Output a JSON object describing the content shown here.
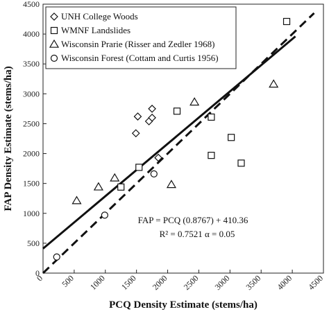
{
  "chart_data": {
    "type": "scatter",
    "xlabel": "PCQ Density Estimate (stems/ha)",
    "ylabel": "FAP Density Estimate (stems/ha)",
    "xlim": [
      0,
      4500
    ],
    "ylim": [
      0,
      4500
    ],
    "x_ticks": [
      0,
      500,
      1000,
      1500,
      2000,
      2500,
      3000,
      3500,
      4000,
      4500
    ],
    "y_ticks": [
      0,
      500,
      1000,
      1500,
      2000,
      2500,
      3000,
      3500,
      4000,
      4500
    ],
    "x_tick_labels": [
      "0",
      "500",
      "1000",
      "1500",
      "2000",
      "2500",
      "3000",
      "3500",
      "4000",
      "4500"
    ],
    "y_tick_labels": [
      "0",
      "500",
      "1000",
      "1500",
      "2000",
      "2500",
      "3000",
      "3500",
      "4000",
      "4500"
    ],
    "grid": false,
    "legend_position": "top-left",
    "series": [
      {
        "name": "UNH College Woods",
        "marker": "diamond",
        "points": [
          [
            1490,
            2340
          ],
          [
            1520,
            2620
          ],
          [
            1700,
            2540
          ],
          [
            1750,
            2600
          ],
          [
            1750,
            2750
          ],
          [
            1850,
            1930
          ]
        ]
      },
      {
        "name": "WMNF Landslides",
        "marker": "square",
        "points": [
          [
            1540,
            1770
          ],
          [
            1250,
            1440
          ],
          [
            2150,
            2710
          ],
          [
            2700,
            2610
          ],
          [
            2700,
            1970
          ],
          [
            3020,
            2270
          ],
          [
            3180,
            1840
          ],
          [
            3910,
            4210
          ]
        ]
      },
      {
        "name": "Wisconsin Prarie (Risser and Zedler 1968)",
        "marker": "triangle",
        "points": [
          [
            540,
            1210
          ],
          [
            890,
            1440
          ],
          [
            1150,
            1590
          ],
          [
            2060,
            1480
          ],
          [
            2430,
            2860
          ],
          [
            3700,
            3160
          ]
        ]
      },
      {
        "name": "Wisconsin Forest (Cottam and Curtis 1956)",
        "marker": "circle",
        "points": [
          [
            220,
            270
          ],
          [
            990,
            970
          ],
          [
            1780,
            1660
          ]
        ]
      }
    ],
    "fit_line": {
      "label": "FAP = PCQ (0.8767) + 410.36",
      "slope": 0.8767,
      "intercept": 410.36,
      "x_range": [
        0,
        4050
      ],
      "style": "solid"
    },
    "identity_line": {
      "x_range": [
        0,
        4350
      ],
      "style": "dashed"
    },
    "annotation_line1": "FAP = PCQ (0.8767) + 410.36",
    "annotation_line2": "R² = 0.7521  α = 0.05",
    "colors": {
      "ink": "#111111",
      "frame": "#222222",
      "background": "#ffffff"
    }
  }
}
